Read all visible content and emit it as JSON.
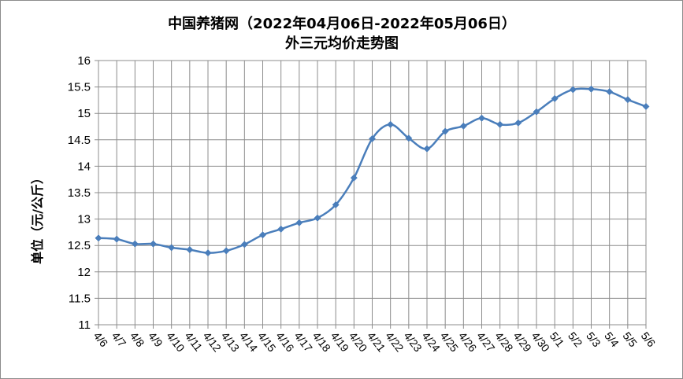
{
  "chart_data": {
    "type": "line",
    "title": "中国养猪网（2022年04月06日-2022年05月06日）",
    "subtitle": "外三元均价走势图",
    "ylabel": "单位（元/公斤）",
    "xlabel": "",
    "ylim": [
      11,
      16
    ],
    "yticks": [
      "16",
      "15.5",
      "15",
      "14.5",
      "14",
      "13.5",
      "13",
      "12.5",
      "12",
      "11.5",
      "11"
    ],
    "grid": true,
    "legend": "none",
    "line_color": "#4a7ebb",
    "categories": [
      "4/6",
      "4/7",
      "4/8",
      "4/9",
      "4/10",
      "4/11",
      "4/12",
      "4/13",
      "4/14",
      "4/15",
      "4/16",
      "4/17",
      "4/18",
      "4/19",
      "4/20",
      "4/21",
      "4/22",
      "4/23",
      "4/24",
      "4/25",
      "4/26",
      "4/27",
      "4/28",
      "4/29",
      "4/30",
      "5/1",
      "5/2",
      "5/3",
      "5/4",
      "5/5",
      "5/6"
    ],
    "series": [
      {
        "values": [
          12.64,
          12.62,
          12.53,
          12.53,
          12.46,
          12.42,
          12.36,
          12.4,
          12.52,
          12.7,
          12.81,
          12.93,
          13.02,
          13.27,
          13.78,
          14.52,
          14.79,
          14.53,
          14.33,
          14.66,
          14.76,
          14.91,
          14.79,
          14.82,
          15.03,
          15.28,
          15.45,
          15.46,
          15.41,
          15.26,
          15.13
        ]
      }
    ]
  }
}
